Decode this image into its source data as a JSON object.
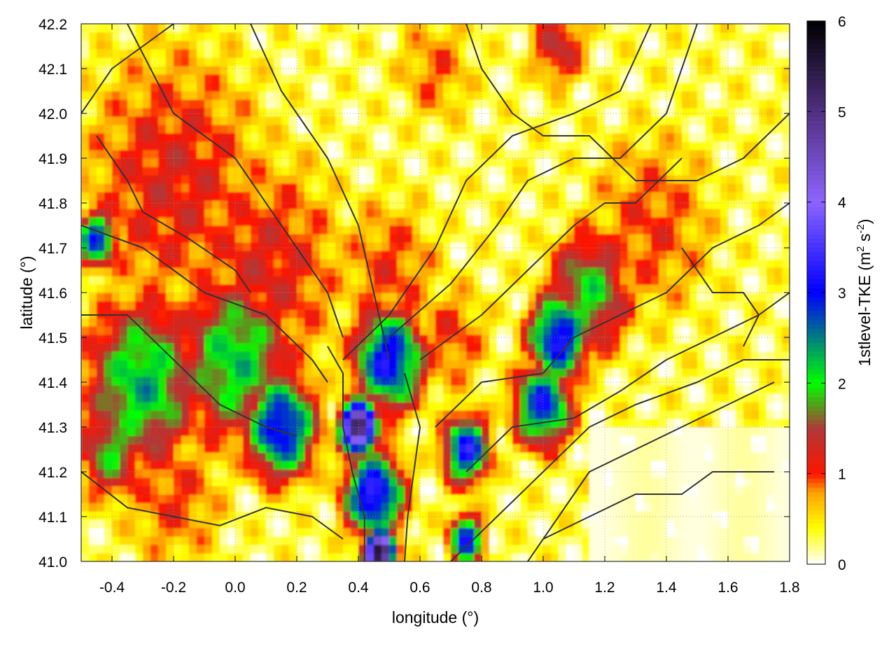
{
  "chart_data": {
    "type": "heatmap",
    "title": "",
    "xlabel": "longitude (°)",
    "ylabel": "latitude (°)",
    "colorbar_label_prefix": "1stlevel-TKE (m",
    "colorbar_label_sup1": "2",
    "colorbar_label_mid": " s",
    "colorbar_label_sup2": "-2",
    "colorbar_label_suffix": ")",
    "xlim": [
      -0.5,
      1.8
    ],
    "ylim": [
      41.0,
      42.2
    ],
    "zlim": [
      0,
      6
    ],
    "x_ticks": [
      -0.4,
      -0.2,
      0.0,
      0.2,
      0.4,
      0.6,
      0.8,
      1.0,
      1.2,
      1.4,
      1.6,
      1.8
    ],
    "x_tick_labels": [
      "-0.4",
      "-0.2",
      "0.0",
      "0.2",
      "0.4",
      "0.6",
      "0.8",
      "1.0",
      "1.2",
      "1.4",
      "1.6",
      "1.8"
    ],
    "y_ticks": [
      41.0,
      41.1,
      41.2,
      41.3,
      41.4,
      41.5,
      41.6,
      41.7,
      41.8,
      41.9,
      42.0,
      42.1,
      42.2
    ],
    "y_tick_labels": [
      "41.0",
      "41.1",
      "41.2",
      "41.3",
      "41.4",
      "41.5",
      "41.6",
      "41.7",
      "41.8",
      "41.9",
      "42.0",
      "42.1",
      "42.2"
    ],
    "cb_ticks": [
      0,
      1,
      2,
      3,
      4,
      5,
      6
    ],
    "cb_tick_labels": [
      "0",
      "1",
      "2",
      "3",
      "4",
      "5",
      "6"
    ],
    "grid": true,
    "contours": true,
    "colormap": [
      {
        "v": 0.0,
        "color": "#ffffff"
      },
      {
        "v": 0.4,
        "color": "#ffff00"
      },
      {
        "v": 0.8,
        "color": "#ffa000"
      },
      {
        "v": 1.0,
        "color": "#ff1400"
      },
      {
        "v": 1.5,
        "color": "#b03838"
      },
      {
        "v": 2.0,
        "color": "#00ff00"
      },
      {
        "v": 3.0,
        "color": "#0000ff"
      },
      {
        "v": 4.0,
        "color": "#8c64ff"
      },
      {
        "v": 5.0,
        "color": "#503080"
      },
      {
        "v": 6.0,
        "color": "#000000"
      }
    ],
    "blobs": [
      {
        "lon": 0.5,
        "lat": 41.45,
        "r": 0.12,
        "v": 3.2
      },
      {
        "lon": 0.4,
        "lat": 41.3,
        "r": 0.06,
        "v": 5.5
      },
      {
        "lon": 0.45,
        "lat": 41.15,
        "r": 0.1,
        "v": 3.5
      },
      {
        "lon": 0.47,
        "lat": 41.02,
        "r": 0.05,
        "v": 5.8
      },
      {
        "lon": 0.15,
        "lat": 41.3,
        "r": 0.12,
        "v": 3.2
      },
      {
        "lon": 0.0,
        "lat": 41.45,
        "r": 0.2,
        "v": 2.2
      },
      {
        "lon": -0.3,
        "lat": 41.4,
        "r": 0.2,
        "v": 2.3
      },
      {
        "lon": -0.4,
        "lat": 41.25,
        "r": 0.12,
        "v": 1.9
      },
      {
        "lon": 1.05,
        "lat": 41.5,
        "r": 0.1,
        "v": 3.3
      },
      {
        "lon": 1.0,
        "lat": 41.35,
        "r": 0.1,
        "v": 3.0
      },
      {
        "lon": 0.75,
        "lat": 41.25,
        "r": 0.08,
        "v": 3.2
      },
      {
        "lon": 0.75,
        "lat": 41.05,
        "r": 0.06,
        "v": 3.0
      },
      {
        "lon": -0.45,
        "lat": 41.72,
        "r": 0.07,
        "v": 2.8
      },
      {
        "lon": 1.15,
        "lat": 41.6,
        "r": 0.15,
        "v": 2.0
      },
      {
        "lon": -0.2,
        "lat": 41.85,
        "r": 0.35,
        "v": 1.2
      },
      {
        "lon": 0.1,
        "lat": 41.65,
        "r": 0.3,
        "v": 1.2
      },
      {
        "lon": 0.5,
        "lat": 41.65,
        "r": 0.2,
        "v": 1.0
      },
      {
        "lon": 1.35,
        "lat": 41.75,
        "r": 0.25,
        "v": 1.0
      },
      {
        "lon": 0.65,
        "lat": 42.1,
        "r": 0.15,
        "v": 0.9
      },
      {
        "lon": 1.05,
        "lat": 42.15,
        "r": 0.1,
        "v": 1.4
      },
      {
        "lon": -0.2,
        "lat": 41.15,
        "r": 0.2,
        "v": 1.0
      },
      {
        "lon": 0.7,
        "lat": 41.5,
        "r": 0.15,
        "v": 1.0
      }
    ],
    "contour_lines": [
      [
        [
          -0.5,
          41.75
        ],
        [
          -0.3,
          41.7
        ],
        [
          -0.1,
          41.6
        ],
        [
          0.1,
          41.55
        ],
        [
          0.25,
          41.45
        ],
        [
          0.3,
          41.4
        ]
      ],
      [
        [
          -0.5,
          41.55
        ],
        [
          -0.35,
          41.55
        ],
        [
          -0.2,
          41.45
        ],
        [
          -0.05,
          41.35
        ],
        [
          0.1,
          41.3
        ],
        [
          0.2,
          41.28
        ]
      ],
      [
        [
          -0.35,
          42.2
        ],
        [
          -0.2,
          42.0
        ],
        [
          0.0,
          41.9
        ],
        [
          0.15,
          41.75
        ],
        [
          0.3,
          41.6
        ],
        [
          0.35,
          41.5
        ]
      ],
      [
        [
          0.05,
          42.2
        ],
        [
          0.15,
          42.05
        ],
        [
          0.3,
          41.9
        ],
        [
          0.4,
          41.75
        ],
        [
          0.45,
          41.6
        ],
        [
          0.5,
          41.45
        ]
      ],
      [
        [
          0.3,
          41.48
        ],
        [
          0.35,
          41.42
        ],
        [
          0.35,
          41.3
        ],
        [
          0.38,
          41.2
        ],
        [
          0.42,
          41.1
        ],
        [
          0.42,
          41.0
        ]
      ],
      [
        [
          0.55,
          41.42
        ],
        [
          0.6,
          41.3
        ],
        [
          0.58,
          41.2
        ],
        [
          0.56,
          41.1
        ],
        [
          0.55,
          41.0
        ]
      ],
      [
        [
          0.35,
          41.45
        ],
        [
          0.5,
          41.55
        ],
        [
          0.65,
          41.7
        ],
        [
          0.75,
          41.85
        ],
        [
          0.9,
          41.95
        ],
        [
          1.1,
          42.0
        ],
        [
          1.25,
          42.05
        ],
        [
          1.35,
          42.2
        ]
      ],
      [
        [
          0.5,
          41.5
        ],
        [
          0.7,
          41.62
        ],
        [
          0.85,
          41.75
        ],
        [
          0.95,
          41.85
        ],
        [
          1.1,
          41.9
        ],
        [
          1.25,
          41.9
        ],
        [
          1.4,
          42.0
        ],
        [
          1.5,
          42.2
        ]
      ],
      [
        [
          0.6,
          41.45
        ],
        [
          0.8,
          41.55
        ],
        [
          0.95,
          41.65
        ],
        [
          1.1,
          41.75
        ],
        [
          1.2,
          41.8
        ],
        [
          1.3,
          41.8
        ],
        [
          1.45,
          41.9
        ]
      ],
      [
        [
          0.65,
          41.3
        ],
        [
          0.8,
          41.4
        ],
        [
          1.0,
          41.42
        ],
        [
          1.1,
          41.5
        ],
        [
          1.25,
          41.55
        ],
        [
          1.4,
          41.6
        ],
        [
          1.55,
          41.7
        ],
        [
          1.7,
          41.75
        ],
        [
          1.8,
          41.8
        ]
      ],
      [
        [
          0.75,
          41.2
        ],
        [
          0.9,
          41.3
        ],
        [
          1.1,
          41.32
        ],
        [
          1.25,
          41.38
        ],
        [
          1.4,
          41.45
        ],
        [
          1.55,
          41.5
        ],
        [
          1.7,
          41.55
        ],
        [
          1.8,
          41.6
        ]
      ],
      [
        [
          0.7,
          41.0
        ],
        [
          0.85,
          41.1
        ],
        [
          1.0,
          41.2
        ],
        [
          1.15,
          41.3
        ],
        [
          1.3,
          41.35
        ],
        [
          1.5,
          41.4
        ],
        [
          1.65,
          41.45
        ],
        [
          1.8,
          41.45
        ]
      ],
      [
        [
          0.95,
          41.0
        ],
        [
          1.05,
          41.1
        ],
        [
          1.15,
          41.2
        ],
        [
          1.3,
          41.25
        ],
        [
          1.45,
          41.3
        ],
        [
          1.6,
          41.35
        ],
        [
          1.75,
          41.4
        ]
      ],
      [
        [
          1.0,
          41.05
        ],
        [
          1.15,
          41.1
        ],
        [
          1.3,
          41.15
        ],
        [
          1.45,
          41.15
        ],
        [
          1.55,
          41.2
        ],
        [
          1.65,
          41.2
        ],
        [
          1.75,
          41.2
        ]
      ],
      [
        [
          -0.5,
          41.2
        ],
        [
          -0.35,
          41.12
        ],
        [
          -0.2,
          41.1
        ],
        [
          -0.05,
          41.08
        ],
        [
          0.1,
          41.12
        ],
        [
          0.25,
          41.1
        ],
        [
          0.35,
          41.05
        ]
      ],
      [
        [
          -0.45,
          41.95
        ],
        [
          -0.35,
          41.85
        ],
        [
          -0.3,
          41.78
        ],
        [
          -0.15,
          41.72
        ],
        [
          0.0,
          41.65
        ],
        [
          0.05,
          41.6
        ]
      ],
      [
        [
          -0.5,
          42.0
        ],
        [
          -0.4,
          42.1
        ],
        [
          -0.3,
          42.15
        ],
        [
          -0.2,
          42.2
        ]
      ],
      [
        [
          0.75,
          42.2
        ],
        [
          0.8,
          42.1
        ],
        [
          0.9,
          42.0
        ],
        [
          1.0,
          41.95
        ],
        [
          1.15,
          41.95
        ],
        [
          1.3,
          41.85
        ],
        [
          1.5,
          41.85
        ],
        [
          1.65,
          41.9
        ],
        [
          1.8,
          42.0
        ]
      ],
      [
        [
          1.45,
          41.7
        ],
        [
          1.55,
          41.6
        ],
        [
          1.65,
          41.6
        ],
        [
          1.7,
          41.55
        ],
        [
          1.65,
          41.48
        ]
      ]
    ]
  }
}
